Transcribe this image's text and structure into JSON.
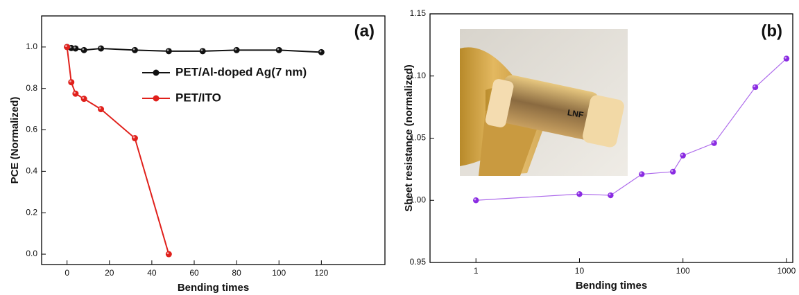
{
  "chart_data": [
    {
      "type": "line",
      "panel_label": "(a)",
      "xlabel": "Bending times",
      "ylabel": "PCE (Normalized)",
      "xlim": [
        -12,
        150
      ],
      "ylim": [
        -0.05,
        1.15
      ],
      "xticks": [
        0,
        20,
        40,
        60,
        80,
        100,
        120
      ],
      "yticks": [
        {
          "value": 0,
          "label": "0.0"
        },
        0.2,
        0.4,
        0.6,
        0.8,
        {
          "value": 1,
          "label": "1.0"
        }
      ],
      "legend": "upper-center",
      "series": [
        {
          "name": "PET/Al-doped Ag(7 nm)",
          "color": "#111111",
          "x": [
            0,
            2,
            4,
            8,
            16,
            32,
            48,
            64,
            80,
            100,
            120
          ],
          "values": [
            1.0,
            0.995,
            0.993,
            0.985,
            0.993,
            0.985,
            0.98,
            0.98,
            0.985,
            0.985,
            0.975
          ]
        },
        {
          "name": "PET/ITO",
          "color": "#e0201b",
          "x": [
            0,
            2,
            4,
            8,
            16,
            32,
            48
          ],
          "values": [
            1.0,
            0.83,
            0.775,
            0.75,
            0.7,
            0.56,
            0.0
          ]
        }
      ]
    },
    {
      "type": "line",
      "panel_label": "(b)",
      "xlabel": "Bending times",
      "ylabel": "Sheet resistance (normalized)",
      "xscale": "log",
      "xlim": [
        0.36,
        1150
      ],
      "ylim": [
        0.95,
        1.15
      ],
      "xticks": [
        1,
        10,
        100,
        1000
      ],
      "yticks": [
        0.95,
        {
          "value": 1,
          "label": "1.00"
        },
        1.05,
        {
          "value": 1.1,
          "label": "1.10"
        },
        1.15
      ],
      "inset_text": "LNF",
      "series": [
        {
          "color": "#8a2be2",
          "x": [
            1,
            10,
            20,
            40,
            80,
            100,
            200,
            500,
            1000
          ],
          "values": [
            1.0,
            1.005,
            1.004,
            1.021,
            1.023,
            1.036,
            1.046,
            1.091,
            1.114
          ]
        }
      ]
    }
  ]
}
